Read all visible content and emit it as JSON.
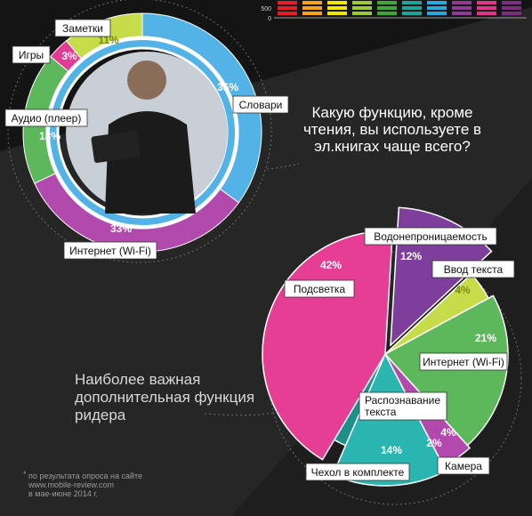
{
  "question": "Какую функцию, кроме чтения, вы используете в эл.книгах чаще всего?",
  "heading": "Наиболее важная дополнительная функция ридера",
  "footnote": {
    "star": "*",
    "lines": [
      "по результата опроса на сайте",
      "www.mobile-review.com",
      "в мае-июне 2014 г."
    ]
  },
  "top_bar": {
    "ticks": [
      "500",
      "0"
    ],
    "colors": [
      "#e31e24",
      "#f7a21b",
      "#f2e500",
      "#9dc83c",
      "#3aa935",
      "#1ea59a",
      "#28a8e0",
      "#8e3b96",
      "#e3348c",
      "#7b2d7f"
    ]
  },
  "photo": {
    "icon": "man-with-tablet-photo"
  },
  "chart_data": [
    {
      "type": "pie",
      "title": "Какую функцию, кроме чтения, вы используете в эл.книгах чаще всего?",
      "categories": [
        "Словари",
        "Интернет (Wi-Fi)",
        "Аудио (плеер)",
        "Игры",
        "Заметки"
      ],
      "values": [
        35,
        33,
        18,
        3,
        11
      ],
      "pct_labels": [
        "35%",
        "33%",
        "18%",
        "3%",
        "11%"
      ],
      "colors": [
        "#54b3e6",
        "#b24aad",
        "#5cb85b",
        "#e33c93",
        "#c7dc4a"
      ]
    },
    {
      "type": "pie",
      "title": "Наиболее важная дополнительная функция ридера",
      "categories": [
        "Водонепроницаемость",
        "Ввод текста",
        "Интернет (Wi-Fi)",
        "Камера",
        "Чехол в комплекте",
        "Распознавание текста",
        "Подсветка"
      ],
      "values": [
        12,
        4,
        21,
        4,
        14,
        2,
        42
      ],
      "pct_labels": [
        "12%",
        "4%",
        "21%",
        "4%",
        "14%",
        "2%",
        "42%"
      ],
      "colors": [
        "#7d3f9b",
        "#c7dc4a",
        "#5cb85b",
        "#b24aad",
        "#2ab5b0",
        "#1f8f8a",
        "#e63d95"
      ]
    }
  ]
}
